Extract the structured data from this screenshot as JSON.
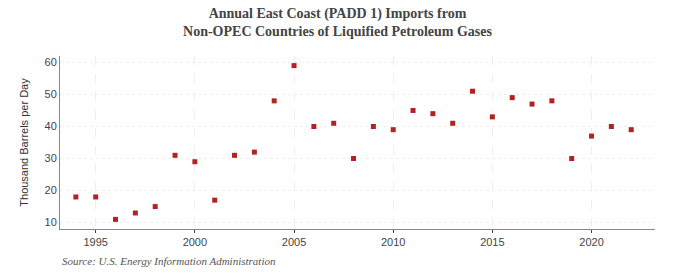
{
  "chart_data": {
    "type": "scatter",
    "title": "Annual East Coast (PADD 1) Imports from Non-OPEC Countries of Liquified Petroleum Gases",
    "y_label": "Thousand Barrels per Day",
    "annotations": [
      "Source: U.S. Energy Information Administration"
    ],
    "x": [
      1994,
      1995,
      1996,
      1997,
      1998,
      1999,
      2000,
      2001,
      2002,
      2003,
      2004,
      2005,
      2006,
      2007,
      2008,
      2009,
      2010,
      2011,
      2012,
      2013,
      2014,
      2015,
      2016,
      2017,
      2018,
      2019,
      2020,
      2021,
      2022
    ],
    "values": [
      18.0,
      18.0,
      11.0,
      13.0,
      15.0,
      31.0,
      29.0,
      17.0,
      31.0,
      32.0,
      48.0,
      59.0,
      40.0,
      41.0,
      30.0,
      40.0,
      39.0,
      45.0,
      44.0,
      41.0,
      51.0,
      43.0,
      49.0,
      47.0,
      48.0,
      30.0,
      37.0,
      40.0,
      39.0
    ],
    "color": "#b22222",
    "marker": "square",
    "xlim": [
      1993.2,
      2023.2
    ],
    "ylim": [
      8,
      62
    ],
    "xticks": [
      1995,
      2000,
      2005,
      2010,
      2015,
      2020
    ],
    "yticks": [
      10,
      20,
      30,
      40,
      50,
      60
    ],
    "grid": true
  }
}
